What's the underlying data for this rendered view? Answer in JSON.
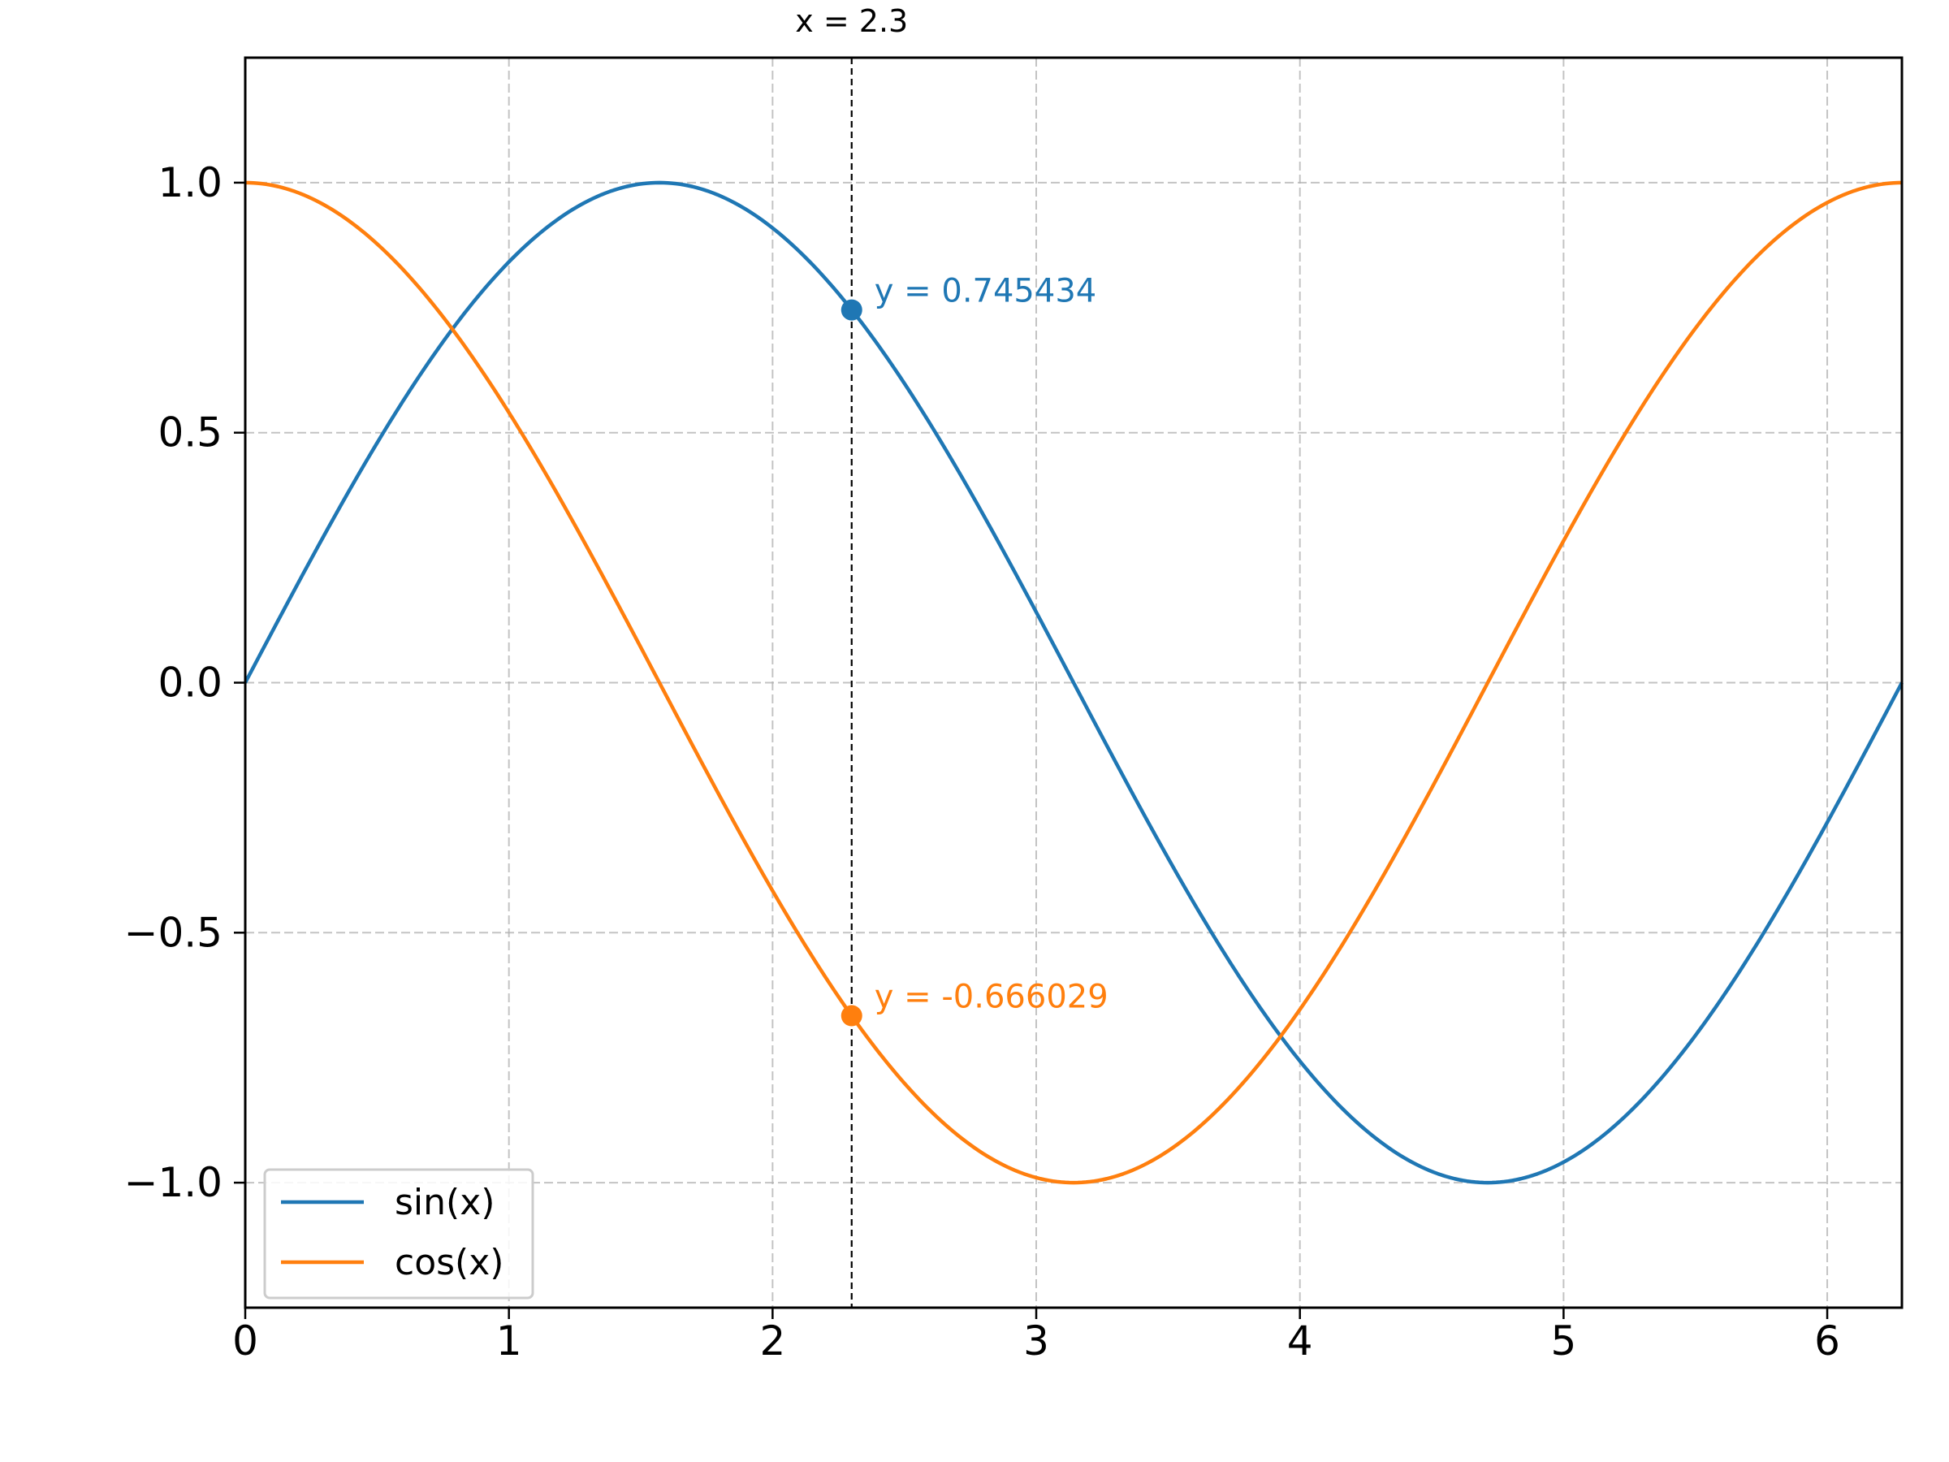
{
  "chart_data": {
    "type": "line",
    "title": "",
    "xlabel": "",
    "ylabel": "",
    "xlim": [
      0,
      6.283185307179586
    ],
    "ylim": [
      -1.25,
      1.25
    ],
    "xticks": [
      0,
      1,
      2,
      3,
      4,
      5,
      6
    ],
    "xtick_labels": [
      "0",
      "1",
      "2",
      "3",
      "4",
      "5",
      "6"
    ],
    "yticks": [
      -1.0,
      -0.5,
      0.0,
      0.5,
      1.0
    ],
    "ytick_labels": [
      "−1.0",
      "−0.5",
      "0.0",
      "0.5",
      "1.0"
    ],
    "grid": true,
    "grid_style": "dashed",
    "legend_position": "lower-left",
    "series": [
      {
        "name": "sin(x)",
        "function": "sin",
        "color": "#1f77b4"
      },
      {
        "name": "cos(x)",
        "function": "cos",
        "color": "#ff7f0e"
      }
    ],
    "cursor": {
      "x": 2.3,
      "label": "x = 2.3",
      "color": "#000000",
      "points": [
        {
          "series": "sin(x)",
          "y": 0.745434,
          "label": "y = 0.745434",
          "color": "#1f77b4"
        },
        {
          "series": "cos(x)",
          "y": -0.666029,
          "label": "y = -0.666029",
          "color": "#ff7f0e"
        }
      ]
    }
  }
}
